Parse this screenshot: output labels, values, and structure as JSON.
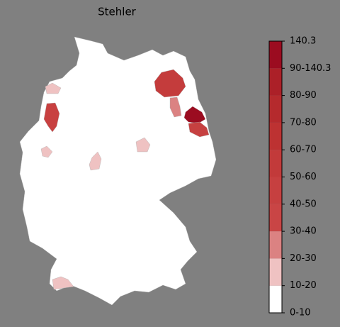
{
  "title": "Stehler",
  "colorbar": {
    "labels": [
      "0-10",
      "10-20",
      "20-30",
      "30-40",
      "40-50",
      "50-60",
      "60-70",
      "70-80",
      "80-90",
      "90-140.3",
      "140.3"
    ],
    "colors": [
      "#ffffff",
      "#efc2c2",
      "#db8282",
      "#c94545",
      "#c64040",
      "#c23a3a",
      "#bd3232",
      "#b52a2d",
      "#ac2028",
      "#9b0c20"
    ]
  }
}
